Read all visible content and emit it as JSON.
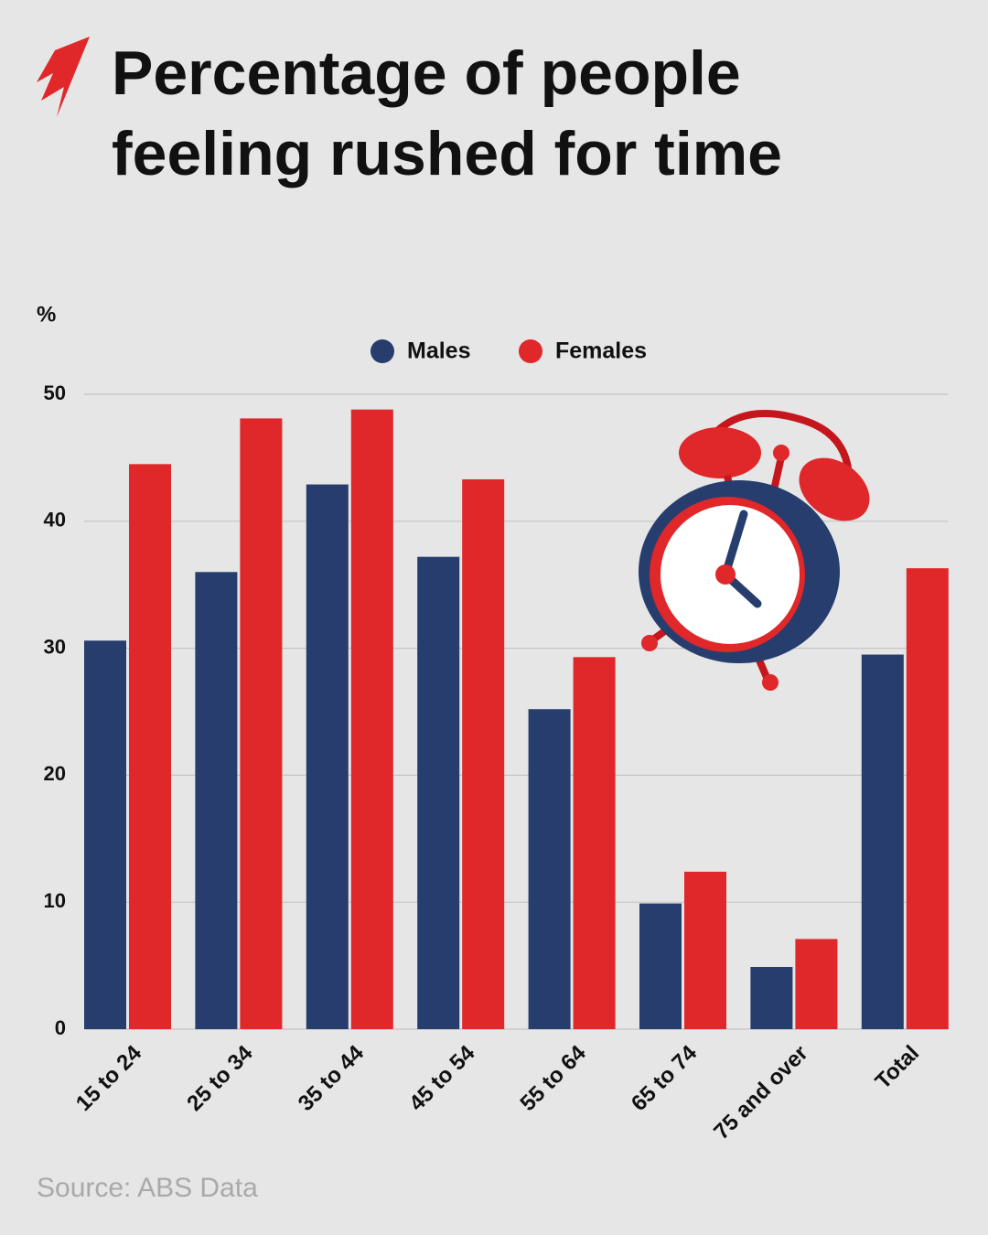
{
  "chart_data": {
    "type": "bar",
    "title": "Percentage of people feeling rushed for time",
    "y_label": "%",
    "source": "Source: ABS Data",
    "categories": [
      "15 to 24",
      "25 to 34",
      "35 to 44",
      "45 to 54",
      "55 to 64",
      "65 to 74",
      "75 and over",
      "Total"
    ],
    "series": [
      {
        "name": "Males",
        "color": "#263d6e",
        "values": [
          30.6,
          36.0,
          42.9,
          37.2,
          25.2,
          9.9,
          4.9,
          29.5
        ]
      },
      {
        "name": "Females",
        "color": "#e0272a",
        "values": [
          44.5,
          48.1,
          48.8,
          43.3,
          29.3,
          12.4,
          7.1,
          36.3
        ]
      }
    ],
    "ylim": [
      0,
      50
    ],
    "yticks": [
      0,
      10,
      20,
      30,
      40,
      50
    ],
    "grid": true
  }
}
